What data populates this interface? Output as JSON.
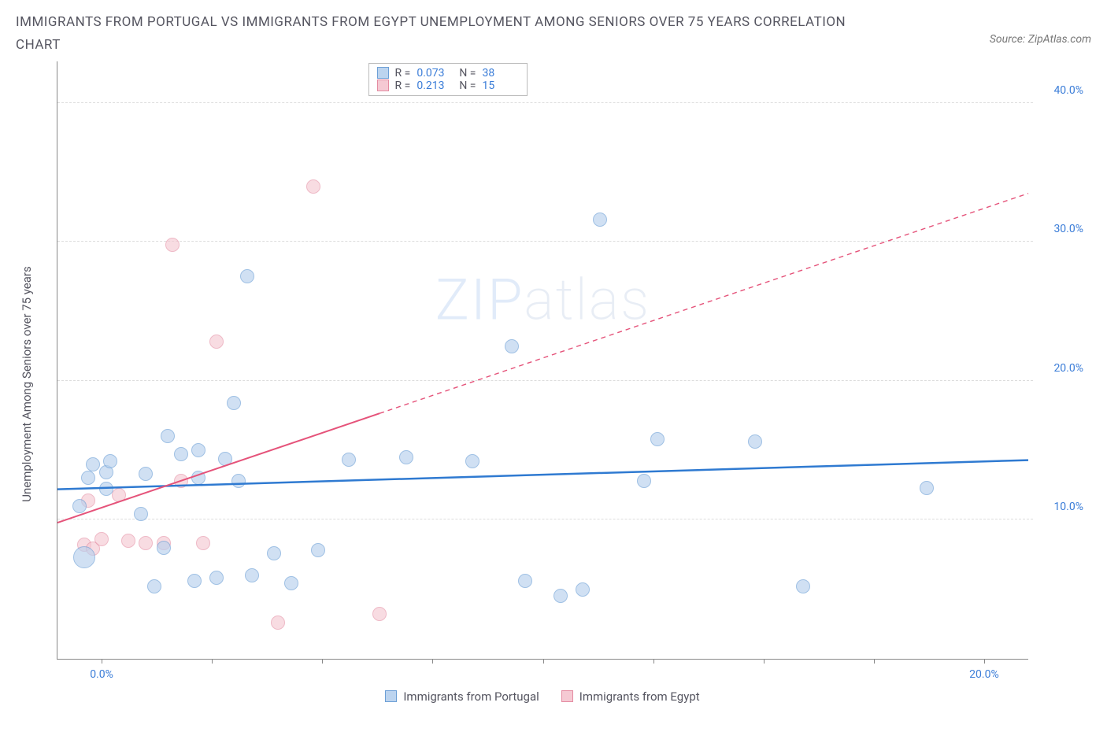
{
  "title": "IMMIGRANTS FROM PORTUGAL VS IMMIGRANTS FROM EGYPT UNEMPLOYMENT AMONG SENIORS OVER 75 YEARS CORRELATION CHART",
  "source_text": "Source: ZipAtlas.com",
  "ylabel": "Unemployment Among Seniors over 75 years",
  "watermark": "ZIPatlas",
  "chart": {
    "type": "scatter",
    "xlim": [
      -1,
      21
    ],
    "ylim": [
      0,
      43
    ],
    "x_ticks": [
      0,
      2.5,
      5,
      7.5,
      10,
      12.5,
      15,
      17.5,
      20
    ],
    "x_tick_labels": {
      "0": "0.0%",
      "20": "20.0%"
    },
    "y_ticks": [
      10,
      20,
      30,
      40
    ],
    "y_tick_labels": [
      "10.0%",
      "20.0%",
      "30.0%",
      "40.0%"
    ],
    "grid_color": "#dddddd",
    "axis_color": "#888888",
    "background_color": "#ffffff"
  },
  "series": {
    "portugal": {
      "label": "Immigrants from Portugal",
      "fill_color": "#b8d1ee",
      "stroke_color": "#6c9fd6",
      "fill_opacity": 0.65,
      "marker_radius": 9,
      "trend": {
        "y_at_xmin": 12.2,
        "y_at_xmax": 14.3,
        "dash_after_x": 21,
        "color": "#2f7ad1",
        "width": 2.5
      },
      "stats": {
        "R": "0.073",
        "N": "38"
      },
      "points": [
        {
          "x": -0.4,
          "y": 7.3,
          "r": 14
        },
        {
          "x": -0.5,
          "y": 11.0
        },
        {
          "x": -0.3,
          "y": 13.0
        },
        {
          "x": -0.2,
          "y": 14.0
        },
        {
          "x": 0.1,
          "y": 13.4
        },
        {
          "x": 0.1,
          "y": 12.2
        },
        {
          "x": 0.2,
          "y": 14.2
        },
        {
          "x": 0.9,
          "y": 10.4
        },
        {
          "x": 1.0,
          "y": 13.3
        },
        {
          "x": 1.2,
          "y": 5.2
        },
        {
          "x": 1.4,
          "y": 8.0
        },
        {
          "x": 1.5,
          "y": 16.0
        },
        {
          "x": 1.8,
          "y": 14.7
        },
        {
          "x": 2.1,
          "y": 5.6
        },
        {
          "x": 2.2,
          "y": 15.0
        },
        {
          "x": 2.2,
          "y": 13.0
        },
        {
          "x": 2.6,
          "y": 5.8
        },
        {
          "x": 2.8,
          "y": 14.4
        },
        {
          "x": 3.0,
          "y": 18.4
        },
        {
          "x": 3.1,
          "y": 12.8
        },
        {
          "x": 3.3,
          "y": 27.5
        },
        {
          "x": 3.4,
          "y": 6.0
        },
        {
          "x": 3.9,
          "y": 7.6
        },
        {
          "x": 4.3,
          "y": 5.4
        },
        {
          "x": 4.9,
          "y": 7.8
        },
        {
          "x": 5.6,
          "y": 14.3
        },
        {
          "x": 6.9,
          "y": 14.5
        },
        {
          "x": 8.4,
          "y": 14.2
        },
        {
          "x": 9.3,
          "y": 22.5
        },
        {
          "x": 9.6,
          "y": 5.6
        },
        {
          "x": 10.4,
          "y": 4.5
        },
        {
          "x": 10.9,
          "y": 5.0
        },
        {
          "x": 11.3,
          "y": 31.6
        },
        {
          "x": 12.3,
          "y": 12.8
        },
        {
          "x": 12.6,
          "y": 15.8
        },
        {
          "x": 14.8,
          "y": 15.6
        },
        {
          "x": 15.9,
          "y": 5.2
        },
        {
          "x": 18.7,
          "y": 12.3
        }
      ]
    },
    "egypt": {
      "label": "Immigrants from Egypt",
      "fill_color": "#f5c6d0",
      "stroke_color": "#e48ba1",
      "fill_opacity": 0.6,
      "marker_radius": 9,
      "trend": {
        "y_at_xmin": 9.8,
        "y_at_xmax": 33.5,
        "dash_after_x": 6.3,
        "color": "#e5537a",
        "width": 2
      },
      "stats": {
        "R": "0.213",
        "N": "15"
      },
      "points": [
        {
          "x": -0.4,
          "y": 8.2
        },
        {
          "x": -0.3,
          "y": 11.4
        },
        {
          "x": -0.2,
          "y": 7.9
        },
        {
          "x": 0.0,
          "y": 8.6
        },
        {
          "x": 0.4,
          "y": 11.8
        },
        {
          "x": 0.6,
          "y": 8.5
        },
        {
          "x": 1.0,
          "y": 8.3
        },
        {
          "x": 1.4,
          "y": 8.3
        },
        {
          "x": 1.6,
          "y": 29.8
        },
        {
          "x": 1.8,
          "y": 12.8
        },
        {
          "x": 2.3,
          "y": 8.3
        },
        {
          "x": 2.6,
          "y": 22.8
        },
        {
          "x": 4.0,
          "y": 2.6
        },
        {
          "x": 4.8,
          "y": 34.0
        },
        {
          "x": 6.3,
          "y": 3.2
        }
      ]
    }
  },
  "legend_swatches": {
    "portugal": {
      "fill": "#bcd4ef",
      "border": "#6c9fd6"
    },
    "egypt": {
      "fill": "#f5c9d3",
      "border": "#e48ba1"
    }
  }
}
